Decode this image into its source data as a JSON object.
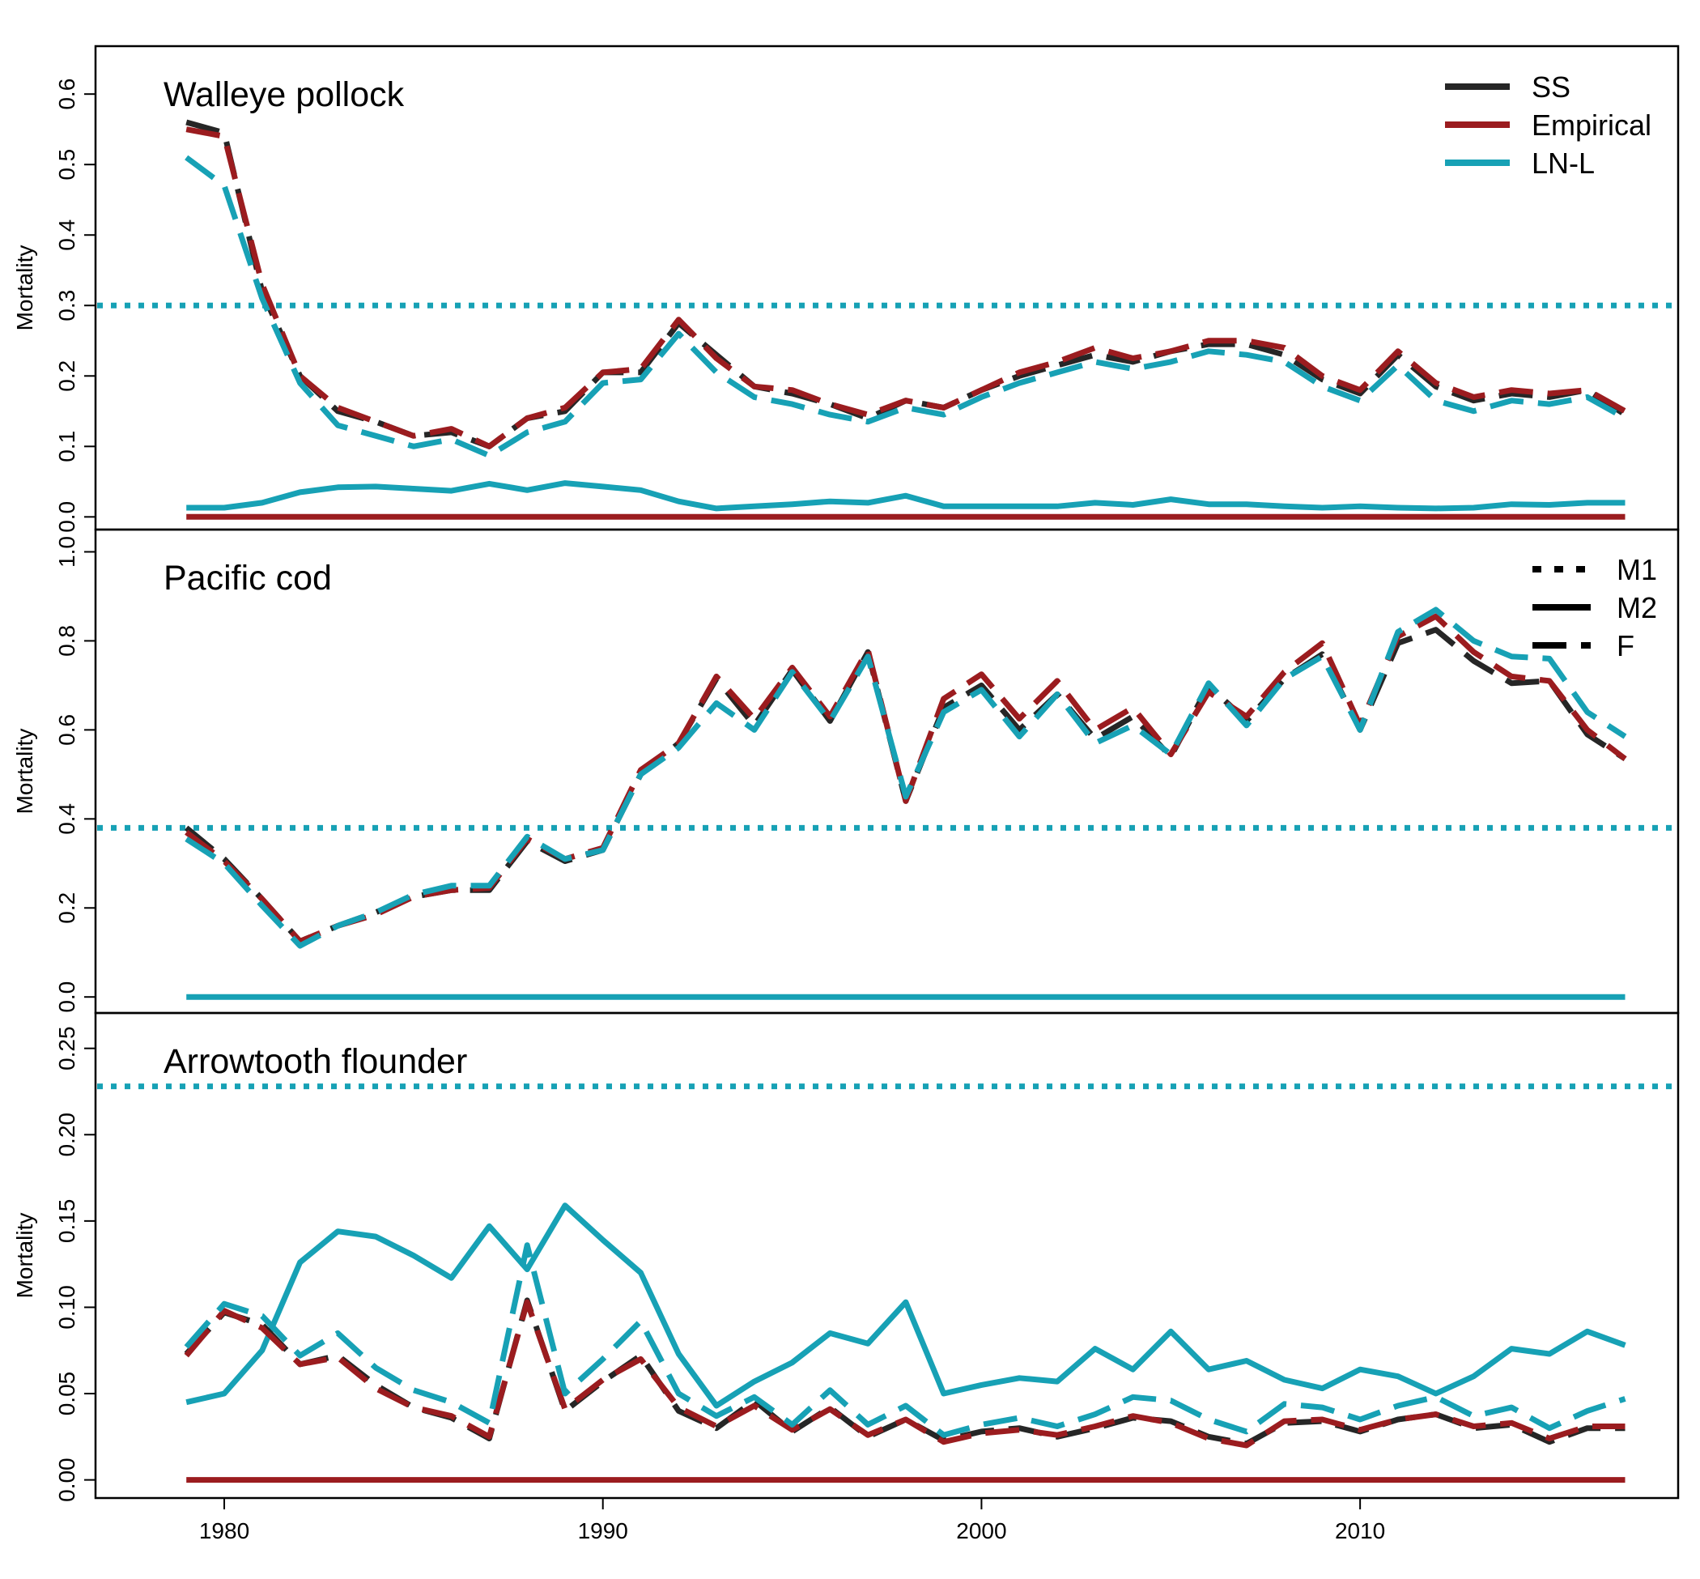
{
  "figure": {
    "colors": {
      "SS": "#262626",
      "Empirical": "#9b1c1f",
      "LN-L": "#17a1b5"
    },
    "x_ticks": [
      1980,
      1990,
      2000,
      2010
    ],
    "legend_models": [
      {
        "label": "SS",
        "color": "#262626"
      },
      {
        "label": "Empirical",
        "color": "#9b1c1f"
      },
      {
        "label": "LN-L",
        "color": "#17a1b5"
      }
    ],
    "legend_mortality": [
      {
        "label": "M1",
        "style": "dotted"
      },
      {
        "label": "M2",
        "style": "solid"
      },
      {
        "label": "F",
        "style": "dashed"
      }
    ]
  },
  "chart_data": [
    {
      "type": "line",
      "title": "Walleye pollock",
      "ylabel": "Mortality",
      "xlim": [
        1976.6,
        2018.4
      ],
      "ylim": [
        -0.018,
        0.668
      ],
      "yticks": [
        "0.0",
        "0.1",
        "0.2",
        "0.3",
        "0.4",
        "0.5",
        "0.6"
      ],
      "x": [
        1979,
        1980,
        1981,
        1982,
        1983,
        1984,
        1985,
        1986,
        1987,
        1988,
        1989,
        1990,
        1991,
        1992,
        1993,
        1994,
        1995,
        1996,
        1997,
        1998,
        1999,
        2000,
        2001,
        2002,
        2003,
        2004,
        2005,
        2006,
        2007,
        2008,
        2009,
        2010,
        2011,
        2012,
        2013,
        2014,
        2015,
        2016,
        2017
      ],
      "series": [
        {
          "name": "SS",
          "kind": "F",
          "color": "#262626",
          "values": [
            0.56,
            0.545,
            0.32,
            0.2,
            0.15,
            0.135,
            0.115,
            0.12,
            0.1,
            0.14,
            0.15,
            0.205,
            0.205,
            0.275,
            0.23,
            0.185,
            0.175,
            0.16,
            0.14,
            0.165,
            0.155,
            0.18,
            0.2,
            0.215,
            0.23,
            0.22,
            0.235,
            0.245,
            0.245,
            0.23,
            0.195,
            0.175,
            0.23,
            0.185,
            0.165,
            0.175,
            0.17,
            0.18,
            0.145
          ]
        },
        {
          "name": "Empirical",
          "kind": "F",
          "color": "#9b1c1f",
          "values": [
            0.55,
            0.54,
            0.33,
            0.2,
            0.155,
            0.135,
            0.115,
            0.125,
            0.1,
            0.14,
            0.155,
            0.205,
            0.21,
            0.28,
            0.225,
            0.185,
            0.18,
            0.16,
            0.145,
            0.165,
            0.155,
            0.18,
            0.205,
            0.22,
            0.24,
            0.225,
            0.235,
            0.25,
            0.25,
            0.24,
            0.2,
            0.18,
            0.235,
            0.19,
            0.17,
            0.18,
            0.175,
            0.18,
            0.15
          ]
        },
        {
          "name": "LN-L",
          "kind": "F",
          "color": "#17a1b5",
          "values": [
            0.51,
            0.47,
            0.31,
            0.19,
            0.13,
            0.115,
            0.1,
            0.11,
            0.087,
            0.12,
            0.135,
            0.19,
            0.195,
            0.26,
            0.205,
            0.17,
            0.16,
            0.145,
            0.135,
            0.155,
            0.145,
            0.17,
            0.19,
            0.205,
            0.22,
            0.21,
            0.22,
            0.235,
            0.23,
            0.22,
            0.185,
            0.165,
            0.215,
            0.165,
            0.15,
            0.165,
            0.16,
            0.17,
            0.14
          ]
        },
        {
          "name": "LN-L",
          "kind": "M2",
          "color": "#17a1b5",
          "values": [
            0.013,
            0.013,
            0.02,
            0.035,
            0.042,
            0.043,
            0.04,
            0.037,
            0.047,
            0.038,
            0.048,
            0.043,
            0.038,
            0.022,
            0.012,
            0.015,
            0.018,
            0.022,
            0.02,
            0.03,
            0.015,
            0.015,
            0.015,
            0.015,
            0.02,
            0.017,
            0.025,
            0.018,
            0.018,
            0.015,
            0.013,
            0.015,
            0.013,
            0.012,
            0.013,
            0.018,
            0.017,
            0.02,
            0.02
          ]
        },
        {
          "name": "Empirical",
          "kind": "M2",
          "color": "#9b1c1f",
          "values": [
            0,
            0,
            0,
            0,
            0,
            0,
            0,
            0,
            0,
            0,
            0,
            0,
            0,
            0,
            0,
            0,
            0,
            0,
            0,
            0,
            0,
            0,
            0,
            0,
            0,
            0,
            0,
            0,
            0,
            0,
            0,
            0,
            0,
            0,
            0,
            0,
            0,
            0,
            0
          ]
        }
      ],
      "hlines": [
        {
          "kind": "M1",
          "color": "#17a1b5",
          "y": 0.3
        }
      ]
    },
    {
      "type": "line",
      "title": "Pacific cod",
      "ylabel": "Mortality",
      "xlim": [
        1976.6,
        2018.4
      ],
      "ylim": [
        -0.036,
        1.05
      ],
      "yticks": [
        "0.0",
        "0.2",
        "0.4",
        "0.6",
        "0.8",
        "1.0"
      ],
      "x": [
        1979,
        1980,
        1981,
        1982,
        1983,
        1984,
        1985,
        1986,
        1987,
        1988,
        1989,
        1990,
        1991,
        1992,
        1993,
        1994,
        1995,
        1996,
        1997,
        1998,
        1999,
        2000,
        2001,
        2002,
        2003,
        2004,
        2005,
        2006,
        2007,
        2008,
        2009,
        2010,
        2011,
        2012,
        2013,
        2014,
        2015,
        2016,
        2017
      ],
      "series": [
        {
          "name": "SS",
          "kind": "F",
          "color": "#262626",
          "values": [
            0.38,
            0.31,
            0.22,
            0.125,
            0.16,
            0.19,
            0.225,
            0.24,
            0.24,
            0.35,
            0.305,
            0.33,
            0.5,
            0.57,
            0.715,
            0.61,
            0.735,
            0.62,
            0.775,
            0.44,
            0.65,
            0.7,
            0.6,
            0.68,
            0.58,
            0.63,
            0.54,
            0.7,
            0.62,
            0.715,
            0.77,
            0.6,
            0.795,
            0.825,
            0.755,
            0.705,
            0.71,
            0.59,
            0.535
          ]
        },
        {
          "name": "Empirical",
          "kind": "F",
          "color": "#9b1c1f",
          "values": [
            0.37,
            0.305,
            0.22,
            0.125,
            0.16,
            0.185,
            0.225,
            0.24,
            0.245,
            0.355,
            0.31,
            0.335,
            0.51,
            0.57,
            0.72,
            0.625,
            0.74,
            0.63,
            0.78,
            0.44,
            0.67,
            0.725,
            0.625,
            0.71,
            0.6,
            0.65,
            0.545,
            0.685,
            0.63,
            0.73,
            0.795,
            0.61,
            0.81,
            0.855,
            0.775,
            0.72,
            0.71,
            0.6,
            0.535
          ]
        },
        {
          "name": "LN-L",
          "kind": "F",
          "color": "#17a1b5",
          "values": [
            0.355,
            0.3,
            0.205,
            0.115,
            0.16,
            0.19,
            0.23,
            0.25,
            0.25,
            0.36,
            0.31,
            0.33,
            0.5,
            0.56,
            0.66,
            0.6,
            0.73,
            0.62,
            0.765,
            0.45,
            0.64,
            0.69,
            0.585,
            0.68,
            0.57,
            0.61,
            0.545,
            0.705,
            0.61,
            0.715,
            0.765,
            0.6,
            0.82,
            0.87,
            0.8,
            0.765,
            0.76,
            0.64,
            0.585
          ]
        },
        {
          "name": "LN-L",
          "kind": "M2",
          "color": "#17a1b5",
          "values": [
            0,
            0,
            0,
            0,
            0,
            0,
            0,
            0,
            0,
            0,
            0,
            0,
            0,
            0,
            0,
            0,
            0,
            0,
            0,
            0,
            0,
            0,
            0,
            0,
            0,
            0,
            0,
            0,
            0,
            0,
            0,
            0,
            0,
            0,
            0,
            0,
            0,
            0,
            0
          ]
        }
      ],
      "hlines": [
        {
          "kind": "M1",
          "color": "#17a1b5",
          "y": 0.38
        }
      ]
    },
    {
      "type": "line",
      "title": "Arrowtooth flounder",
      "ylabel": "Mortality",
      "xlim": [
        1976.6,
        2018.4
      ],
      "ylim": [
        -0.0105,
        0.2705
      ],
      "yticks": [
        "0.00",
        "0.05",
        "0.10",
        "0.15",
        "0.20",
        "0.25"
      ],
      "x": [
        1979,
        1980,
        1981,
        1982,
        1983,
        1984,
        1985,
        1986,
        1987,
        1988,
        1989,
        1990,
        1991,
        1992,
        1993,
        1994,
        1995,
        1996,
        1997,
        1998,
        1999,
        2000,
        2001,
        2002,
        2003,
        2004,
        2005,
        2006,
        2007,
        2008,
        2009,
        2010,
        2011,
        2012,
        2013,
        2014,
        2015,
        2016,
        2017
      ],
      "series": [
        {
          "name": "LN-L",
          "kind": "M2",
          "color": "#17a1b5",
          "values": [
            0.045,
            0.05,
            0.075,
            0.126,
            0.144,
            0.141,
            0.13,
            0.117,
            0.147,
            0.122,
            0.159,
            0.139,
            0.12,
            0.073,
            0.043,
            0.057,
            0.068,
            0.085,
            0.079,
            0.103,
            0.05,
            0.055,
            0.059,
            0.057,
            0.076,
            0.064,
            0.086,
            0.064,
            0.069,
            0.058,
            0.053,
            0.064,
            0.06,
            0.05,
            0.06,
            0.076,
            0.073,
            0.086,
            0.078
          ]
        },
        {
          "name": "SS",
          "kind": "F",
          "color": "#262626",
          "values": [
            0.073,
            0.097,
            0.09,
            0.067,
            0.072,
            0.055,
            0.042,
            0.036,
            0.024,
            0.104,
            0.04,
            0.057,
            0.072,
            0.04,
            0.03,
            0.046,
            0.028,
            0.042,
            0.025,
            0.035,
            0.023,
            0.028,
            0.03,
            0.025,
            0.03,
            0.036,
            0.034,
            0.025,
            0.021,
            0.033,
            0.034,
            0.028,
            0.035,
            0.038,
            0.03,
            0.032,
            0.022,
            0.03,
            0.03
          ]
        },
        {
          "name": "Empirical",
          "kind": "F",
          "color": "#9b1c1f",
          "values": [
            0.072,
            0.098,
            0.088,
            0.067,
            0.071,
            0.053,
            0.042,
            0.037,
            0.025,
            0.103,
            0.041,
            0.058,
            0.07,
            0.042,
            0.031,
            0.043,
            0.029,
            0.041,
            0.026,
            0.035,
            0.022,
            0.027,
            0.029,
            0.026,
            0.031,
            0.037,
            0.033,
            0.024,
            0.02,
            0.034,
            0.035,
            0.029,
            0.035,
            0.038,
            0.031,
            0.033,
            0.024,
            0.031,
            0.031
          ]
        },
        {
          "name": "LN-L",
          "kind": "F",
          "color": "#17a1b5",
          "values": [
            0.077,
            0.102,
            0.095,
            0.072,
            0.085,
            0.065,
            0.052,
            0.045,
            0.033,
            0.136,
            0.05,
            0.07,
            0.092,
            0.05,
            0.037,
            0.048,
            0.032,
            0.052,
            0.032,
            0.043,
            0.026,
            0.032,
            0.036,
            0.031,
            0.038,
            0.048,
            0.046,
            0.035,
            0.028,
            0.044,
            0.042,
            0.035,
            0.043,
            0.048,
            0.037,
            0.042,
            0.03,
            0.04,
            0.047
          ]
        },
        {
          "name": "Empirical",
          "kind": "M2",
          "color": "#9b1c1f",
          "values": [
            0,
            0,
            0,
            0,
            0,
            0,
            0,
            0,
            0,
            0,
            0,
            0,
            0,
            0,
            0,
            0,
            0,
            0,
            0,
            0,
            0,
            0,
            0,
            0,
            0,
            0,
            0,
            0,
            0,
            0,
            0,
            0,
            0,
            0,
            0,
            0,
            0,
            0,
            0
          ]
        }
      ],
      "hlines": [
        {
          "kind": "M1",
          "color": "#17a1b5",
          "y": 0.228
        }
      ]
    }
  ]
}
